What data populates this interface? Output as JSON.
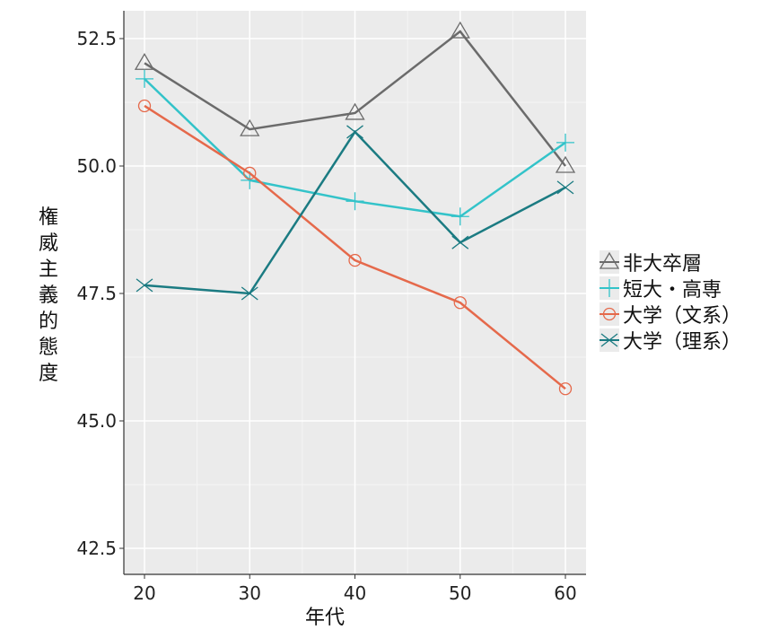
{
  "chart_data": {
    "type": "line",
    "title": "",
    "xlabel": "年代",
    "ylabel": "権威主義的態度",
    "x": [
      20,
      30,
      40,
      50,
      60
    ],
    "xticks": [
      "20",
      "30",
      "40",
      "50",
      "60"
    ],
    "yticks": [
      "42.5",
      "45.0",
      "47.5",
      "50.0",
      "52.5"
    ],
    "ylim": [
      42.1,
      53.1
    ],
    "grid": true,
    "legend_position": "right",
    "series": [
      {
        "name": "非大卒層",
        "marker": "triangle",
        "color": "#6b6b6b",
        "values": [
          52.02,
          50.72,
          51.04,
          52.64,
          50.0
        ]
      },
      {
        "name": "短大・高専",
        "marker": "plus",
        "color": "#33c3c9",
        "values": [
          51.71,
          49.72,
          49.31,
          49.01,
          50.46
        ]
      },
      {
        "name": "大学（文系）",
        "marker": "circle",
        "color": "#e5694b",
        "values": [
          51.18,
          49.86,
          48.15,
          47.32,
          45.63
        ]
      },
      {
        "name": "大学（理系）",
        "marker": "x",
        "color": "#1b7b82",
        "values": [
          47.66,
          47.5,
          50.67,
          48.5,
          49.58
        ]
      }
    ]
  }
}
